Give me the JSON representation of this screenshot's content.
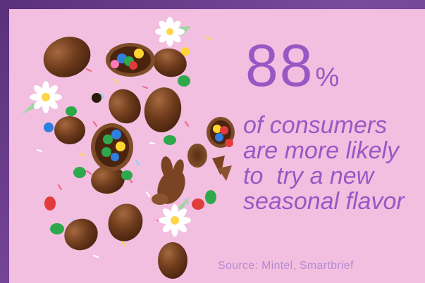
{
  "infographic": {
    "stat_number": "88",
    "stat_percent": "%",
    "description_lines": [
      "of consumers",
      "are more likely",
      "to  try a new",
      "seasonal flavor"
    ],
    "source": "Source: Mintel, Smartbrief"
  },
  "image": {
    "subject": "chocolate-eggs-and-candies-icon"
  },
  "colors": {
    "frame": "#6b3c8c",
    "background": "#f2bfe0",
    "accent_text": "#9a57c4",
    "source_text": "#b68ad0",
    "chocolate": "#6b3a1f",
    "chocolate_light": "#8a5230"
  }
}
